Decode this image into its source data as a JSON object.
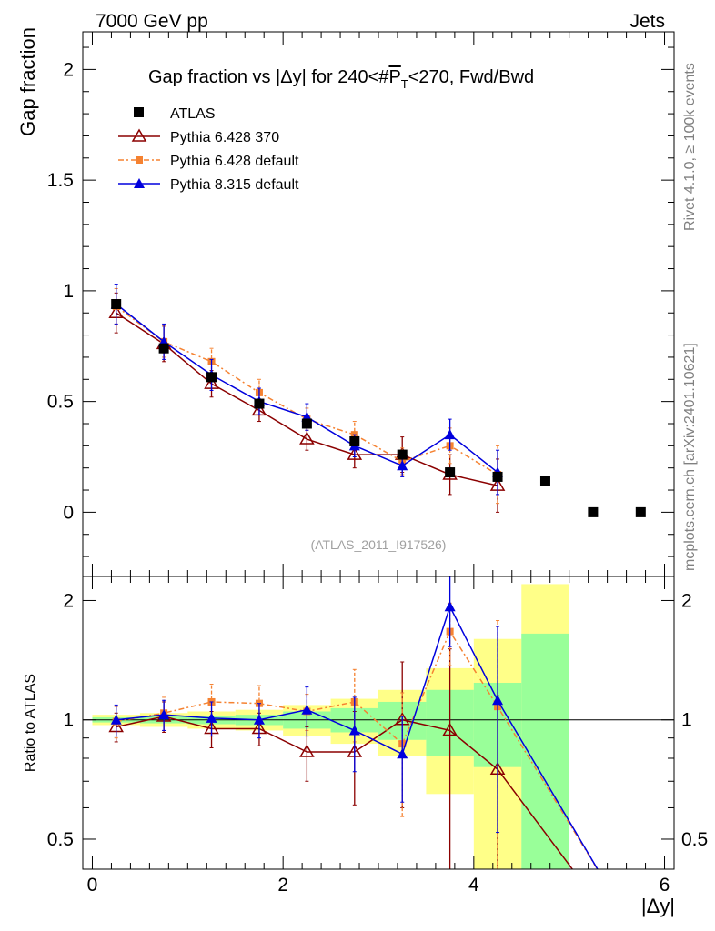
{
  "header": {
    "left": "7000 GeV pp",
    "right": "Jets"
  },
  "side_labels": {
    "rivet": "Rivet 4.1.0, ≥ 100k events",
    "mcplots": "mcplots.cern.ch [arXiv:2401.10621]"
  },
  "watermark": "(ATLAS_2011_I917526)",
  "colors": {
    "atlas": "#000000",
    "py6_370": "#8b0000",
    "py6_default": "#f58231",
    "py8": "#0000dd",
    "band_yellow": "#ffff88",
    "band_green": "#99ff99"
  },
  "chart_data": [
    {
      "type": "scatter",
      "title": "Gap fraction vs |Δy| for 240<#P̅T<270, Fwd/Bwd",
      "title_parts": {
        "pre": "Gap fraction vs |Δy| for 240<#",
        "P": "P",
        "T": "T",
        "post": "<270, Fwd/Bwd"
      },
      "xlabel": "",
      "ylabel": "Gap fraction",
      "xlim": [
        -0.1,
        6.1
      ],
      "ylim": [
        -0.29,
        2.17
      ],
      "yticks": [
        0,
        0.5,
        1,
        1.5,
        2
      ],
      "ytick_labels": [
        "0",
        "0.5",
        "1",
        "1.5",
        "2"
      ],
      "x": [
        0.25,
        0.75,
        1.25,
        1.75,
        2.25,
        2.75,
        3.25,
        3.75,
        4.25,
        4.75,
        5.25,
        5.75
      ],
      "series": [
        {
          "name": "ATLAS",
          "values": [
            0.94,
            0.74,
            0.61,
            0.49,
            0.4,
            0.32,
            0.26,
            0.18,
            0.16,
            0.14,
            0.0,
            0.0
          ],
          "errors": [
            0.02,
            0.02,
            0.02,
            0.02,
            0.02,
            0.02,
            0.02,
            0.02,
            0.02,
            0.0,
            0.0,
            0.0
          ]
        },
        {
          "name": "Pythia 6.428 370",
          "values": [
            0.9,
            0.76,
            0.58,
            0.46,
            0.33,
            0.26,
            0.26,
            0.17,
            0.12
          ],
          "errors": [
            0.09,
            0.08,
            0.06,
            0.05,
            0.05,
            0.06,
            0.08,
            0.09,
            0.12
          ]
        },
        {
          "name": "Pythia 6.428 default",
          "values": [
            0.93,
            0.77,
            0.68,
            0.54,
            0.42,
            0.35,
            0.23,
            0.3,
            0.17
          ],
          "errors": [
            0.08,
            0.07,
            0.06,
            0.06,
            0.05,
            0.06,
            0.06,
            0.08,
            0.13
          ]
        },
        {
          "name": "Pythia 8.315 default",
          "values": [
            0.94,
            0.77,
            0.62,
            0.5,
            0.43,
            0.3,
            0.21,
            0.35,
            0.18
          ],
          "errors": [
            0.09,
            0.08,
            0.07,
            0.06,
            0.06,
            0.05,
            0.05,
            0.07,
            0.1
          ]
        }
      ]
    },
    {
      "type": "scatter",
      "title": "",
      "xlabel": "|Δy|",
      "ylabel": "Ratio to ATLAS",
      "xlim": [
        -0.1,
        6.1
      ],
      "ylim": [
        0.42,
        2.3
      ],
      "yscale": "log",
      "yticks": [
        0.5,
        1,
        2
      ],
      "ytick_labels": [
        "0.5",
        "1",
        "2"
      ],
      "xticks": [
        0,
        2,
        4,
        6
      ],
      "xtick_labels": [
        "0",
        "2",
        "4",
        "6"
      ],
      "bins": [
        [
          0,
          0.5
        ],
        [
          0.5,
          1
        ],
        [
          1,
          1.5
        ],
        [
          1.5,
          2
        ],
        [
          2,
          2.5
        ],
        [
          2.5,
          3
        ],
        [
          3,
          3.5
        ],
        [
          3.5,
          4
        ],
        [
          4,
          4.5
        ],
        [
          4.5,
          5
        ]
      ],
      "band_yellow": [
        [
          0.97,
          1.03
        ],
        [
          0.96,
          1.04
        ],
        [
          0.95,
          1.05
        ],
        [
          0.94,
          1.06
        ],
        [
          0.91,
          1.09
        ],
        [
          0.87,
          1.13
        ],
        [
          0.81,
          1.19
        ],
        [
          0.65,
          1.35
        ],
        [
          0.4,
          1.6
        ],
        [
          0.38,
          2.2
        ]
      ],
      "band_green": [
        [
          0.985,
          1.015
        ],
        [
          0.98,
          1.02
        ],
        [
          0.975,
          1.025
        ],
        [
          0.97,
          1.03
        ],
        [
          0.95,
          1.05
        ],
        [
          0.93,
          1.07
        ],
        [
          0.89,
          1.11
        ],
        [
          0.81,
          1.19
        ],
        [
          0.76,
          1.24
        ],
        [
          0.4,
          1.65
        ]
      ],
      "x": [
        0.25,
        0.75,
        1.25,
        1.75,
        2.25,
        2.75,
        3.25,
        3.75,
        4.25
      ],
      "series": [
        {
          "name": "Pythia 6.428 370",
          "values": [
            0.96,
            1.02,
            0.95,
            0.95,
            0.83,
            0.83,
            1.0,
            0.94,
            0.75
          ],
          "errors": [
            0.08,
            0.09,
            0.1,
            0.09,
            0.13,
            0.22,
            0.4,
            0.57,
            0.4
          ],
          "extend_to": [
            5.1,
            0.4
          ]
        },
        {
          "name": "Pythia 6.428 default",
          "values": [
            0.99,
            1.04,
            1.11,
            1.1,
            1.05,
            1.11,
            0.87,
            1.67,
            1.08
          ],
          "errors": [
            0.09,
            0.1,
            0.12,
            0.12,
            0.11,
            0.23,
            0.3,
            0.3,
            0.7
          ],
          "extend_to": [
            5.35,
            0.4
          ]
        },
        {
          "name": "Pythia 8.315 default",
          "values": [
            1.0,
            1.03,
            1.01,
            1.0,
            1.06,
            0.94,
            0.82,
            1.93,
            1.12
          ],
          "errors": [
            0.09,
            0.09,
            0.1,
            0.1,
            0.15,
            0.2,
            0.2,
            0.4,
            0.6
          ],
          "extend_to": [
            5.35,
            0.4
          ]
        }
      ]
    }
  ]
}
